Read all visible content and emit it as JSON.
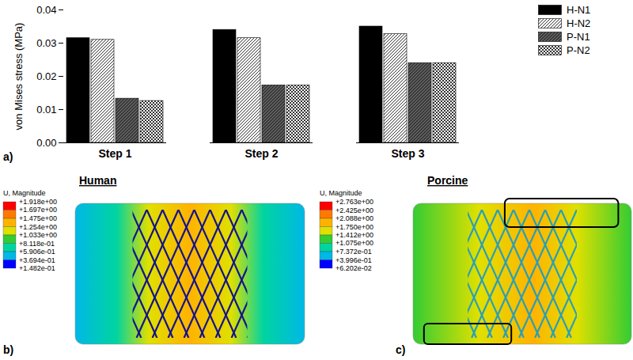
{
  "chart_data": {
    "type": "bar",
    "panel_label": "a)",
    "y_label": "von Mises stress (MPa)",
    "categories": [
      "Step 1",
      "Step 2",
      "Step 3"
    ],
    "series": [
      {
        "name": "H-N1",
        "color": "#000000",
        "values": [
          0.0315,
          0.034,
          0.035
        ]
      },
      {
        "name": "H-N2",
        "color": "#ffffff",
        "values": [
          0.031,
          0.0315,
          0.0327
        ]
      },
      {
        "name": "P-N1",
        "color": "#3c3c3c",
        "values": [
          0.0133,
          0.0173,
          0.024
        ]
      },
      {
        "name": "P-N2",
        "color": "#ffffff",
        "values": [
          0.0126,
          0.0173,
          0.024
        ]
      }
    ],
    "ylim": [
      0,
      0.04
    ],
    "yticks": [
      {
        "value": 0,
        "label": "0.00"
      },
      {
        "value": 0.01,
        "label": "0.01"
      },
      {
        "value": 0.02,
        "label": "0.02"
      },
      {
        "value": 0.03,
        "label": "0.03"
      },
      {
        "value": 0.04,
        "label": "0.04"
      }
    ],
    "legend": "top-right",
    "grid": false
  },
  "panels": [
    {
      "label": "b)",
      "title": "Human",
      "colorbar": {
        "title": "U, Magnitude",
        "ticks": [
          {
            "value": 1.918,
            "label": "+1.918e+00"
          },
          {
            "value": 1.697,
            "label": "+1.697e+00"
          },
          {
            "value": 1.475,
            "label": "+1.475e+00"
          },
          {
            "value": 1.254,
            "label": "+1.254e+00"
          },
          {
            "value": 1.033,
            "label": "+1.033e+00"
          },
          {
            "value": 0.8118,
            "label": "+8.118e-01"
          },
          {
            "value": 0.5906,
            "label": "+5.906e-01"
          },
          {
            "value": 0.3694,
            "label": "+3.694e-01"
          },
          {
            "value": 0.1482,
            "label": "+1.482e-01"
          }
        ],
        "colors": [
          "#ff0000",
          "#ff7a00",
          "#ffb300",
          "#e0e000",
          "#33cc33",
          "#00d4a0",
          "#00b8e6",
          "#0000ff"
        ]
      }
    },
    {
      "label": "c)",
      "title": "Porcine",
      "colorbar": {
        "title": "U, Magnitude",
        "ticks": [
          {
            "value": 2.763,
            "label": "+2.763e+00"
          },
          {
            "value": 2.425,
            "label": "+2.425e+00"
          },
          {
            "value": 2.088,
            "label": "+2.088e+00"
          },
          {
            "value": 1.75,
            "label": "+1.750e+00"
          },
          {
            "value": 1.412,
            "label": "+1.412e+00"
          },
          {
            "value": 1.075,
            "label": "+1.075e+00"
          },
          {
            "value": 0.7372,
            "label": "+7.372e-01"
          },
          {
            "value": 0.3996,
            "label": "+3.996e-01"
          },
          {
            "value": 0.06202,
            "label": "+6.202e-02"
          }
        ],
        "colors": [
          "#ff0000",
          "#ff7a00",
          "#ffb300",
          "#e0e000",
          "#33cc33",
          "#00d4a0",
          "#00b8e6",
          "#0000ff"
        ]
      }
    }
  ]
}
